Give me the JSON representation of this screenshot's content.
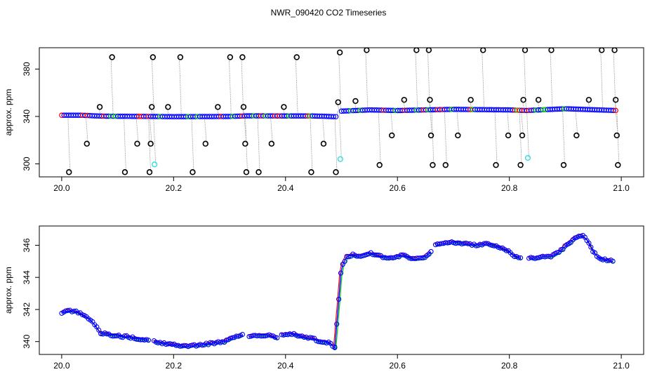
{
  "title": "NWR_090420  CO2 Timeseries",
  "chart_data": [
    {
      "type": "scatter",
      "ylabel": "approx. ppm",
      "xlim": [
        19.96,
        21.04
      ],
      "ylim": [
        289,
        398
      ],
      "xticks": [
        "20.0",
        "20.2",
        "20.4",
        "20.6",
        "20.8",
        "21.0"
      ],
      "xtick_values": [
        20.0,
        20.2,
        20.4,
        20.6,
        20.8,
        21.0
      ],
      "yticks": [
        "300",
        "340",
        "380"
      ],
      "ytick_values": [
        300,
        340,
        380
      ],
      "grid": false,
      "colors": {
        "main": "#0000ff",
        "outlier": "#000000",
        "flagged": "#33dddd",
        "trace": "#999999",
        "alt1": "#ff0000",
        "alt2": "#00cc00"
      },
      "baseline_segments": [
        {
          "x": [
            20.0,
            20.035,
            20.06,
            20.08,
            20.16,
            20.2,
            20.3,
            20.33,
            20.45,
            20.49
          ],
          "y": [
            341,
            341,
            340.5,
            340.2,
            340,
            339.8,
            340,
            340.5,
            340.4,
            339.8
          ]
        },
        {
          "x": [
            20.5,
            20.55,
            20.6,
            20.65,
            20.7,
            20.8,
            20.83,
            20.9,
            20.99
          ],
          "y": [
            344.5,
            345.5,
            345,
            345.5,
            346,
            345.5,
            345,
            346.5,
            345
          ]
        }
      ],
      "outliers": [
        {
          "x": 20.013,
          "y": 293
        },
        {
          "x": 20.045,
          "y": 317
        },
        {
          "x": 20.068,
          "y": 348
        },
        {
          "x": 20.09,
          "y": 390
        },
        {
          "x": 20.113,
          "y": 293
        },
        {
          "x": 20.135,
          "y": 317
        },
        {
          "x": 20.157,
          "y": 293
        },
        {
          "x": 20.159,
          "y": 317
        },
        {
          "x": 20.161,
          "y": 348
        },
        {
          "x": 20.163,
          "y": 390
        },
        {
          "x": 20.19,
          "y": 348
        },
        {
          "x": 20.212,
          "y": 390
        },
        {
          "x": 20.234,
          "y": 293
        },
        {
          "x": 20.257,
          "y": 317
        },
        {
          "x": 20.279,
          "y": 348
        },
        {
          "x": 20.301,
          "y": 390
        },
        {
          "x": 20.323,
          "y": 390
        },
        {
          "x": 20.325,
          "y": 348
        },
        {
          "x": 20.328,
          "y": 317
        },
        {
          "x": 20.33,
          "y": 293
        },
        {
          "x": 20.352,
          "y": 293
        },
        {
          "x": 20.375,
          "y": 317
        },
        {
          "x": 20.397,
          "y": 348
        },
        {
          "x": 20.42,
          "y": 390
        },
        {
          "x": 20.446,
          "y": 293
        },
        {
          "x": 20.468,
          "y": 317
        },
        {
          "x": 20.49,
          "y": 293
        },
        {
          "x": 20.494,
          "y": 352
        },
        {
          "x": 20.497,
          "y": 394
        },
        {
          "x": 20.525,
          "y": 353
        },
        {
          "x": 20.545,
          "y": 396
        },
        {
          "x": 20.568,
          "y": 299
        },
        {
          "x": 20.59,
          "y": 324
        },
        {
          "x": 20.612,
          "y": 354
        },
        {
          "x": 20.634,
          "y": 396
        },
        {
          "x": 20.656,
          "y": 396
        },
        {
          "x": 20.658,
          "y": 354
        },
        {
          "x": 20.66,
          "y": 324
        },
        {
          "x": 20.663,
          "y": 299
        },
        {
          "x": 20.686,
          "y": 299
        },
        {
          "x": 20.708,
          "y": 324
        },
        {
          "x": 20.731,
          "y": 354
        },
        {
          "x": 20.753,
          "y": 396
        },
        {
          "x": 20.776,
          "y": 299
        },
        {
          "x": 20.798,
          "y": 324
        },
        {
          "x": 20.82,
          "y": 299
        },
        {
          "x": 20.823,
          "y": 324
        },
        {
          "x": 20.825,
          "y": 354
        },
        {
          "x": 20.828,
          "y": 396
        },
        {
          "x": 20.852,
          "y": 354
        },
        {
          "x": 20.875,
          "y": 396
        },
        {
          "x": 20.897,
          "y": 299
        },
        {
          "x": 20.92,
          "y": 324
        },
        {
          "x": 20.942,
          "y": 354
        },
        {
          "x": 20.965,
          "y": 396
        },
        {
          "x": 20.988,
          "y": 396
        },
        {
          "x": 20.99,
          "y": 354
        },
        {
          "x": 20.992,
          "y": 324
        },
        {
          "x": 20.994,
          "y": 299
        }
      ],
      "flagged": [
        {
          "x": 20.166,
          "y": 299.5
        },
        {
          "x": 20.498,
          "y": 304
        },
        {
          "x": 20.833,
          "y": 305
        }
      ]
    },
    {
      "type": "scatter",
      "ylabel": "approx. ppm",
      "xlim": [
        19.96,
        21.04
      ],
      "ylim": [
        339.2,
        347.2
      ],
      "xticks": [
        "20.0",
        "20.2",
        "20.4",
        "20.6",
        "20.8",
        "21.0"
      ],
      "xtick_values": [
        20.0,
        20.2,
        20.4,
        20.6,
        20.8,
        21.0
      ],
      "yticks": [
        "340",
        "342",
        "344",
        "346"
      ],
      "ytick_values": [
        340,
        342,
        344,
        346
      ],
      "grid": false,
      "colors": {
        "main": "#0000ff",
        "alt1": "#ff0000",
        "alt2": "#00cc00"
      },
      "segments": [
        {
          "x": [
            20.0,
            20.01,
            20.02,
            20.03,
            20.04,
            20.05,
            20.06,
            20.07
          ],
          "y": [
            341.8,
            341.9,
            341.9,
            341.8,
            341.6,
            341.4,
            341.0,
            340.5
          ]
        },
        {
          "x": [
            20.07,
            20.08,
            20.09,
            20.1,
            20.11,
            20.12,
            20.13,
            20.155
          ],
          "y": [
            340.5,
            340.5,
            340.4,
            340.4,
            340.3,
            340.3,
            340.2,
            340.1
          ]
        },
        {
          "x": [
            20.165,
            20.18,
            20.2,
            20.22,
            20.25,
            20.27,
            20.29,
            20.31,
            20.323
          ],
          "y": [
            340.0,
            339.9,
            339.8,
            339.7,
            339.8,
            339.9,
            340.0,
            340.3,
            340.4
          ]
        },
        {
          "x": [
            20.335,
            20.35,
            20.37,
            20.385
          ],
          "y": [
            340.3,
            340.4,
            340.4,
            340.2
          ]
        },
        {
          "x": [
            20.393,
            20.41,
            20.42,
            20.43,
            20.44,
            20.45,
            20.46,
            20.47,
            20.48,
            20.488
          ],
          "y": [
            340.4,
            340.5,
            340.4,
            340.3,
            340.2,
            340.2,
            340.0,
            340.0,
            339.9,
            339.6
          ]
        },
        {
          "x": [
            20.488,
            20.49,
            20.495,
            20.498,
            20.5,
            20.505,
            20.51,
            20.52,
            20.53,
            20.55,
            20.57,
            20.59,
            20.61,
            20.63,
            20.65,
            20.66
          ],
          "y": [
            339.6,
            340.5,
            342.5,
            344.0,
            344.6,
            345.0,
            345.3,
            345.4,
            345.3,
            345.5,
            345.3,
            345.2,
            345.4,
            345.1,
            345.3,
            345.6
          ]
        },
        {
          "x": [
            20.668,
            20.68,
            20.7,
            20.72,
            20.74,
            20.76,
            20.78,
            20.8,
            20.81,
            20.82
          ],
          "y": [
            346.0,
            346.1,
            346.2,
            346.1,
            346.0,
            346.1,
            345.9,
            345.6,
            345.3,
            345.2
          ]
        },
        {
          "x": [
            20.835,
            20.85,
            20.86,
            20.875,
            20.89,
            20.905,
            20.92,
            20.93,
            20.94,
            20.95,
            20.96,
            20.97,
            20.985
          ],
          "y": [
            345.2,
            345.2,
            345.3,
            345.3,
            345.6,
            346.1,
            346.5,
            346.6,
            346.3,
            345.6,
            345.2,
            345.1,
            345.0
          ]
        }
      ]
    }
  ]
}
